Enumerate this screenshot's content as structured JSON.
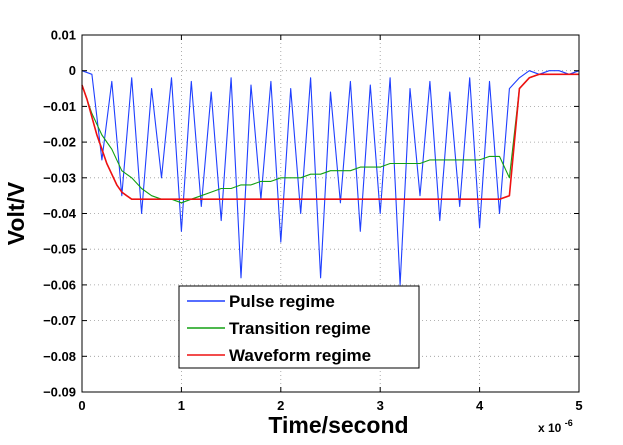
{
  "chart_data": {
    "type": "line",
    "xlabel": "Time/second",
    "ylabel": "Volt/V",
    "x_multiplier_label": "x 10",
    "x_multiplier_exponent": "-6",
    "x_unit_multiplier": 1e-06,
    "xlim": [
      0,
      5
    ],
    "ylim": [
      -0.09,
      0.01
    ],
    "x_ticks": [
      "0",
      "1",
      "2",
      "3",
      "4",
      "5"
    ],
    "y_ticks": [
      "0.01",
      "0",
      "−0.01",
      "−0.02",
      "−0.03",
      "−0.04",
      "−0.05",
      "−0.06",
      "−0.07",
      "−0.08",
      "−0.09"
    ],
    "y_tick_values": [
      0.01,
      0,
      -0.01,
      -0.02,
      -0.03,
      -0.04,
      -0.05,
      -0.06,
      -0.07,
      -0.08,
      -0.09
    ],
    "x_tick_values": [
      0,
      1,
      2,
      3,
      4,
      5
    ],
    "grid": true,
    "legend_position": "bottom-left",
    "series": [
      {
        "name": "Pulse regime",
        "color": "#1f3fff",
        "x": [
          0,
          0.1,
          0.2,
          0.3,
          0.4,
          0.5,
          0.6,
          0.7,
          0.8,
          0.9,
          1.0,
          1.1,
          1.2,
          1.3,
          1.4,
          1.5,
          1.6,
          1.7,
          1.8,
          1.9,
          2.0,
          2.1,
          2.2,
          2.3,
          2.4,
          2.5,
          2.6,
          2.7,
          2.8,
          2.9,
          3.0,
          3.1,
          3.2,
          3.3,
          3.4,
          3.5,
          3.6,
          3.7,
          3.8,
          3.9,
          4.0,
          4.1,
          4.2,
          4.3,
          4.4,
          4.5,
          4.6,
          4.7,
          4.8,
          4.9,
          5.0
        ],
        "y": [
          0.0,
          -0.001,
          -0.025,
          -0.003,
          -0.035,
          -0.002,
          -0.04,
          -0.005,
          -0.03,
          -0.002,
          -0.045,
          -0.003,
          -0.038,
          -0.006,
          -0.042,
          -0.002,
          -0.058,
          -0.004,
          -0.036,
          -0.003,
          -0.048,
          -0.005,
          -0.04,
          -0.002,
          -0.058,
          -0.006,
          -0.037,
          -0.003,
          -0.045,
          -0.004,
          -0.04,
          -0.002,
          -0.06,
          -0.005,
          -0.035,
          -0.003,
          -0.042,
          -0.006,
          -0.038,
          -0.002,
          -0.044,
          -0.003,
          -0.04,
          -0.005,
          -0.002,
          0.0,
          -0.001,
          0.0,
          0.0,
          -0.001,
          0.0
        ]
      },
      {
        "name": "Transition regime",
        "color": "#12a012",
        "x": [
          0,
          0.1,
          0.2,
          0.3,
          0.4,
          0.5,
          0.6,
          0.7,
          0.8,
          0.9,
          1.0,
          1.1,
          1.2,
          1.3,
          1.4,
          1.5,
          1.6,
          1.7,
          1.8,
          1.9,
          2.0,
          2.1,
          2.2,
          2.3,
          2.4,
          2.5,
          2.6,
          2.7,
          2.8,
          2.9,
          3.0,
          3.1,
          3.2,
          3.3,
          3.4,
          3.5,
          3.6,
          3.7,
          3.8,
          3.9,
          4.0,
          4.1,
          4.2,
          4.3,
          4.4,
          4.5,
          4.6,
          4.7,
          4.8,
          4.9,
          5.0
        ],
        "y": [
          -0.004,
          -0.012,
          -0.018,
          -0.022,
          -0.028,
          -0.03,
          -0.033,
          -0.035,
          -0.036,
          -0.036,
          -0.037,
          -0.036,
          -0.035,
          -0.034,
          -0.033,
          -0.033,
          -0.032,
          -0.032,
          -0.031,
          -0.031,
          -0.03,
          -0.03,
          -0.03,
          -0.029,
          -0.029,
          -0.028,
          -0.028,
          -0.028,
          -0.027,
          -0.027,
          -0.027,
          -0.026,
          -0.026,
          -0.026,
          -0.026,
          -0.025,
          -0.025,
          -0.025,
          -0.025,
          -0.025,
          -0.025,
          -0.024,
          -0.024,
          -0.03,
          -0.005,
          -0.002,
          -0.001,
          -0.001,
          -0.001,
          -0.001,
          -0.001
        ]
      },
      {
        "name": "Waveform regime",
        "color": "#ee1111",
        "x": [
          0,
          0.05,
          0.1,
          0.15,
          0.2,
          0.25,
          0.3,
          0.35,
          0.4,
          0.45,
          0.5,
          0.6,
          0.7,
          0.8,
          0.9,
          1.0,
          1.1,
          1.2,
          1.3,
          1.4,
          1.5,
          1.6,
          1.7,
          1.8,
          1.9,
          2.0,
          2.1,
          2.2,
          2.3,
          2.4,
          2.5,
          2.6,
          2.7,
          2.8,
          2.9,
          3.0,
          3.1,
          3.2,
          3.3,
          3.4,
          3.5,
          3.6,
          3.7,
          3.8,
          3.9,
          4.0,
          4.1,
          4.2,
          4.3,
          4.35,
          4.4,
          4.5,
          4.6,
          4.7,
          4.8,
          4.9,
          5.0
        ],
        "y": [
          -0.004,
          -0.008,
          -0.013,
          -0.018,
          -0.022,
          -0.026,
          -0.029,
          -0.032,
          -0.034,
          -0.035,
          -0.036,
          -0.036,
          -0.036,
          -0.036,
          -0.036,
          -0.036,
          -0.036,
          -0.036,
          -0.036,
          -0.036,
          -0.036,
          -0.036,
          -0.036,
          -0.036,
          -0.036,
          -0.036,
          -0.036,
          -0.036,
          -0.036,
          -0.036,
          -0.036,
          -0.036,
          -0.036,
          -0.036,
          -0.036,
          -0.036,
          -0.036,
          -0.036,
          -0.036,
          -0.036,
          -0.036,
          -0.036,
          -0.036,
          -0.036,
          -0.036,
          -0.036,
          -0.036,
          -0.036,
          -0.035,
          -0.02,
          -0.005,
          -0.002,
          -0.001,
          -0.001,
          -0.001,
          -0.001,
          -0.001
        ]
      }
    ]
  }
}
